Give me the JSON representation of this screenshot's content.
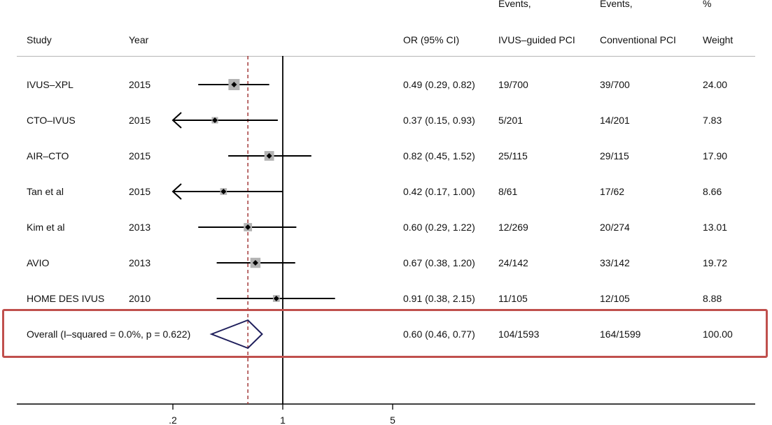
{
  "headers": {
    "study": "Study",
    "year": "Year",
    "or": "OR (95% CI)",
    "events_ivus_line1": "Events,",
    "events_ivus_line2": "IVUS–guided PCI",
    "events_conv_line1": "Events,",
    "events_conv_line2": "Conventional PCI",
    "weight_line1": "%",
    "weight_line2": "Weight"
  },
  "chart_data": {
    "type": "forest",
    "x_scale": "log",
    "xlim": [
      0.1,
      6.3
    ],
    "xticks": [
      {
        "value": 0.2,
        "label": ".2"
      },
      {
        "value": 1,
        "label": "1"
      },
      {
        "value": 5,
        "label": "5"
      }
    ],
    "reference_line": 1,
    "overall_reference_line": 0.6,
    "studies": [
      {
        "name": "IVUS–XPL",
        "year": "2015",
        "or": 0.49,
        "lo": 0.29,
        "hi": 0.82,
        "ci_text": "0.49 (0.29, 0.82)",
        "ivus_events": "19/700",
        "conv_events": "39/700",
        "weight": 24.0,
        "weight_text": "24.00",
        "lo_arrow": false
      },
      {
        "name": "CTO–IVUS",
        "year": "2015",
        "or": 0.37,
        "lo": 0.15,
        "hi": 0.93,
        "ci_text": "0.37 (0.15, 0.93)",
        "ivus_events": "5/201",
        "conv_events": "14/201",
        "weight": 7.83,
        "weight_text": "7.83",
        "lo_arrow": true
      },
      {
        "name": "AIR–CTO",
        "year": "2015",
        "or": 0.82,
        "lo": 0.45,
        "hi": 1.52,
        "ci_text": "0.82 (0.45, 1.52)",
        "ivus_events": "25/115",
        "conv_events": "29/115",
        "weight": 17.9,
        "weight_text": "17.90",
        "lo_arrow": false
      },
      {
        "name": "Tan et al",
        "year": "2015",
        "or": 0.42,
        "lo": 0.17,
        "hi": 1.0,
        "ci_text": "0.42 (0.17, 1.00)",
        "ivus_events": "8/61",
        "conv_events": "17/62",
        "weight": 8.66,
        "weight_text": "8.66",
        "lo_arrow": true
      },
      {
        "name": "Kim et al",
        "year": "2013",
        "or": 0.6,
        "lo": 0.29,
        "hi": 1.22,
        "ci_text": "0.60 (0.29, 1.22)",
        "ivus_events": "12/269",
        "conv_events": "20/274",
        "weight": 13.01,
        "weight_text": "13.01",
        "lo_arrow": false
      },
      {
        "name": "AVIO",
        "year": "2013",
        "or": 0.67,
        "lo": 0.38,
        "hi": 1.2,
        "ci_text": "0.67 (0.38, 1.20)",
        "ivus_events": "24/142",
        "conv_events": "33/142",
        "weight": 19.72,
        "weight_text": "19.72",
        "lo_arrow": false
      },
      {
        "name": "HOME DES IVUS",
        "year": "2010",
        "or": 0.91,
        "lo": 0.38,
        "hi": 2.15,
        "ci_text": "0.91 (0.38, 2.15)",
        "ivus_events": "11/105",
        "conv_events": "12/105",
        "weight": 8.88,
        "weight_text": "8.88",
        "lo_arrow": false
      }
    ],
    "overall": {
      "label": "Overall  (I–squared = 0.0%, p = 0.622)",
      "or": 0.6,
      "lo": 0.46,
      "hi": 0.77,
      "ci_text": "0.60 (0.46, 0.77)",
      "ivus_events": "104/1593",
      "conv_events": "164/1599",
      "weight_text": "100.00"
    },
    "colors": {
      "ci_line": "#000000",
      "weight_box": "#b3b3b3",
      "point": "#000000",
      "diamond": "#1f1f5c",
      "overall_line": "#a33a3a",
      "highlight": "#c0504d"
    }
  }
}
